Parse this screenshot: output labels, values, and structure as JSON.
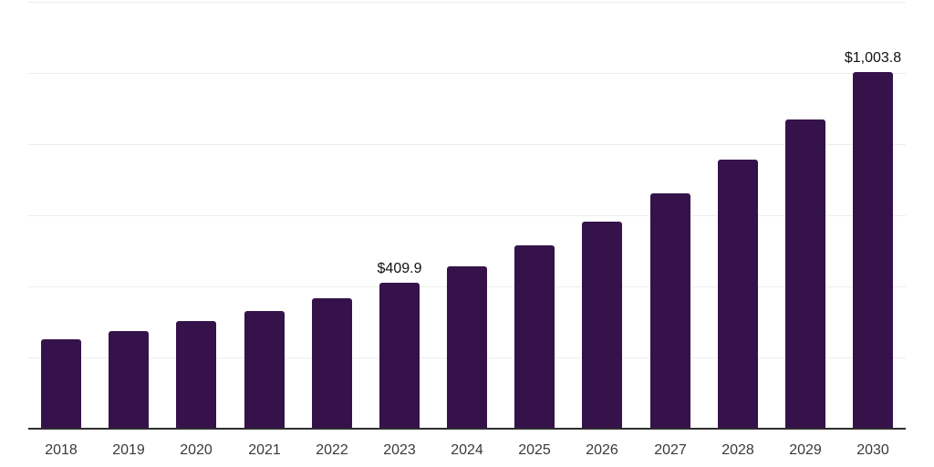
{
  "chart_data": {
    "type": "bar",
    "categories": [
      "2018",
      "2019",
      "2020",
      "2021",
      "2022",
      "2023",
      "2024",
      "2025",
      "2026",
      "2027",
      "2028",
      "2029",
      "2030"
    ],
    "values": [
      250.2,
      273.2,
      301.3,
      332.0,
      367.7,
      409.9,
      457.1,
      515.8,
      582.2,
      661.4,
      755.8,
      868.2,
      1003.8
    ],
    "data_labels": [
      "",
      "",
      "",
      "",
      "",
      "$409.9",
      "",
      "",
      "",
      "",
      "",
      "",
      "$1,003.8"
    ],
    "title": "",
    "xlabel": "",
    "ylabel": "",
    "ylim": [
      0,
      1200
    ],
    "gridline_interval": 200,
    "grid": "horizontal",
    "legend_position": "none",
    "y_tick_labels_visible": false
  },
  "colors": {
    "bar": "#36124A",
    "gridline": "#ededed",
    "axis_line": "#2e2e2e",
    "tick_label": "#3a3a3a",
    "data_label": "#111111",
    "background": "#ffffff"
  }
}
